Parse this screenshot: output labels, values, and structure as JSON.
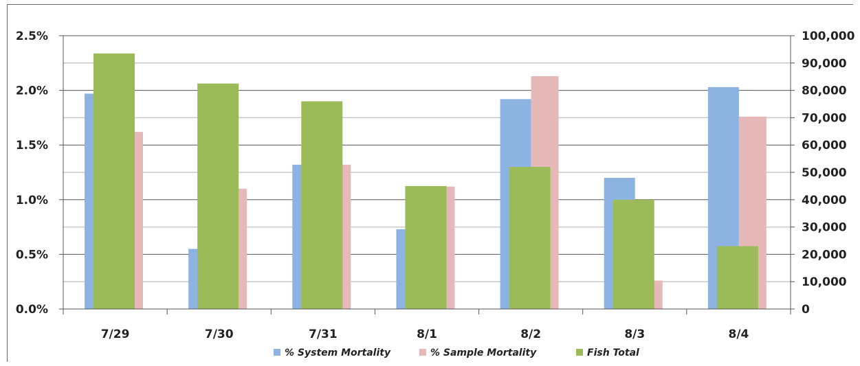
{
  "chart_data": {
    "type": "bar",
    "categories": [
      "7/29",
      "7/30",
      "7/31",
      "8/1",
      "8/2",
      "8/3",
      "8/4"
    ],
    "series": [
      {
        "name": "% System Mortality",
        "axis": "left",
        "unit": "%",
        "values": [
          1.97,
          0.55,
          1.32,
          0.73,
          1.92,
          1.2,
          2.03
        ],
        "color": "#8db3e2"
      },
      {
        "name": "% Sample Mortality",
        "axis": "left",
        "unit": "%",
        "values": [
          1.62,
          1.1,
          1.32,
          1.12,
          2.13,
          0.26,
          1.76
        ],
        "color": "#e6b8b7"
      },
      {
        "name": "Fish Total",
        "axis": "right",
        "values": [
          93500,
          82500,
          76000,
          45000,
          52000,
          40000,
          23000
        ],
        "color": "#9bbb59"
      }
    ],
    "y_left": {
      "range": [
        0,
        2.5
      ],
      "ticks": [
        "0.0%",
        "0.5%",
        "1.0%",
        "1.5%",
        "2.0%",
        "2.5%"
      ]
    },
    "y_right": {
      "range": [
        0,
        100000
      ],
      "ticks": [
        "0",
        "10,000",
        "20,000",
        "30,000",
        "40,000",
        "50,000",
        "60,000",
        "70,000",
        "80,000",
        "90,000",
        "100,000"
      ]
    },
    "grid": true,
    "legend_position": "bottom"
  }
}
